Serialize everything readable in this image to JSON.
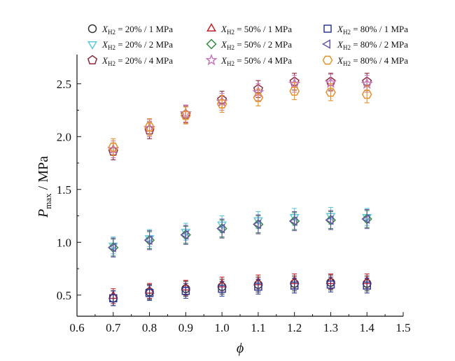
{
  "chart_data": {
    "type": "scatter",
    "title": "",
    "xlabel": "ϕ",
    "ylabel_main": "P",
    "ylabel_sub": "max",
    "ylabel_unit": " / MPa",
    "xlim": [
      0.6,
      1.5
    ],
    "ylim": [
      0.3,
      2.75
    ],
    "xticks": [
      0.6,
      0.7,
      0.8,
      0.9,
      1.0,
      1.1,
      1.2,
      1.3,
      1.4,
      1.5
    ],
    "xtick_labels": [
      "0.6",
      "0.7",
      "0.8",
      "0.9",
      "1.0",
      "1.1",
      "1.2",
      "1.3",
      "1.4",
      "1.5"
    ],
    "yticks": [
      0.5,
      1.0,
      1.5,
      2.0,
      2.5
    ],
    "ytick_labels": [
      "0.5",
      "1.0",
      "1.5",
      "2.0",
      "2.5"
    ],
    "legend_placement": "top",
    "grid": false,
    "x": [
      0.7,
      0.8,
      0.9,
      1.0,
      1.1,
      1.2,
      1.3,
      1.4
    ],
    "series": [
      {
        "name": "X_H2 = 20% / 1 MPa",
        "label_prefix": "X",
        "label_sub": "H2",
        "label_rest": " = 20% / 1 MPa",
        "marker": "circle",
        "color": "#333333",
        "y": [
          0.47,
          0.53,
          0.56,
          0.58,
          0.6,
          0.61,
          0.62,
          0.61
        ],
        "err": 0.07
      },
      {
        "name": "X_H2 = 50% / 1 MPa",
        "label_prefix": "X",
        "label_sub": "H2",
        "label_rest": " = 50% / 1 MPa",
        "marker": "triangle-up",
        "color": "#c0202a",
        "y": [
          0.49,
          0.54,
          0.57,
          0.6,
          0.62,
          0.63,
          0.63,
          0.63
        ],
        "err": 0.07
      },
      {
        "name": "X_H2 = 80% / 1 MPa",
        "label_prefix": "X",
        "label_sub": "H2",
        "label_rest": " = 80% / 1 MPa",
        "marker": "square",
        "color": "#2b3a8f",
        "y": [
          0.47,
          0.52,
          0.54,
          0.56,
          0.58,
          0.59,
          0.6,
          0.59
        ],
        "err": 0.07
      },
      {
        "name": "X_H2 = 20% / 2 MPa",
        "label_prefix": "X",
        "label_sub": "H2",
        "label_rest": " = 20% / 2 MPa",
        "marker": "triangle-down",
        "color": "#5fc8d8",
        "y": [
          0.97,
          1.04,
          1.1,
          1.17,
          1.21,
          1.24,
          1.25,
          1.24
        ],
        "err": 0.08
      },
      {
        "name": "X_H2 = 50% / 2 MPa",
        "label_prefix": "X",
        "label_sub": "H2",
        "label_rest": " = 50% / 2 MPa",
        "marker": "diamond",
        "color": "#2e8b3e",
        "y": [
          0.95,
          1.02,
          1.07,
          1.13,
          1.17,
          1.2,
          1.21,
          1.22
        ],
        "err": 0.08
      },
      {
        "name": "X_H2 = 80% / 2 MPa",
        "label_prefix": "X",
        "label_sub": "H2",
        "label_rest": " = 80% / 2 MPa",
        "marker": "triangle-left",
        "color": "#6a55a8",
        "y": [
          0.95,
          1.02,
          1.07,
          1.13,
          1.17,
          1.2,
          1.21,
          1.22
        ],
        "err": 0.09
      },
      {
        "name": "X_H2 = 20% / 4 MPa",
        "label_prefix": "X",
        "label_sub": "H2",
        "label_rest": " = 20% / 4 MPa",
        "marker": "pentagon",
        "color": "#8b2a3a",
        "y": [
          1.86,
          2.06,
          2.21,
          2.35,
          2.45,
          2.52,
          2.52,
          2.52
        ],
        "err": 0.08
      },
      {
        "name": "X_H2 = 50% / 4 MPa",
        "label_prefix": "X",
        "label_sub": "H2",
        "label_rest": " = 50% / 4 MPa",
        "marker": "star",
        "color": "#c47ab8",
        "y": [
          1.88,
          2.08,
          2.22,
          2.33,
          2.42,
          2.5,
          2.51,
          2.5
        ],
        "err": 0.08
      },
      {
        "name": "X_H2 = 80% / 4 MPa",
        "label_prefix": "X",
        "label_sub": "H2",
        "label_rest": " = 80% / 4 MPa",
        "marker": "hexagon",
        "color": "#e8902a",
        "y": [
          1.9,
          2.09,
          2.2,
          2.31,
          2.37,
          2.43,
          2.42,
          2.4
        ],
        "err": 0.08
      }
    ]
  }
}
